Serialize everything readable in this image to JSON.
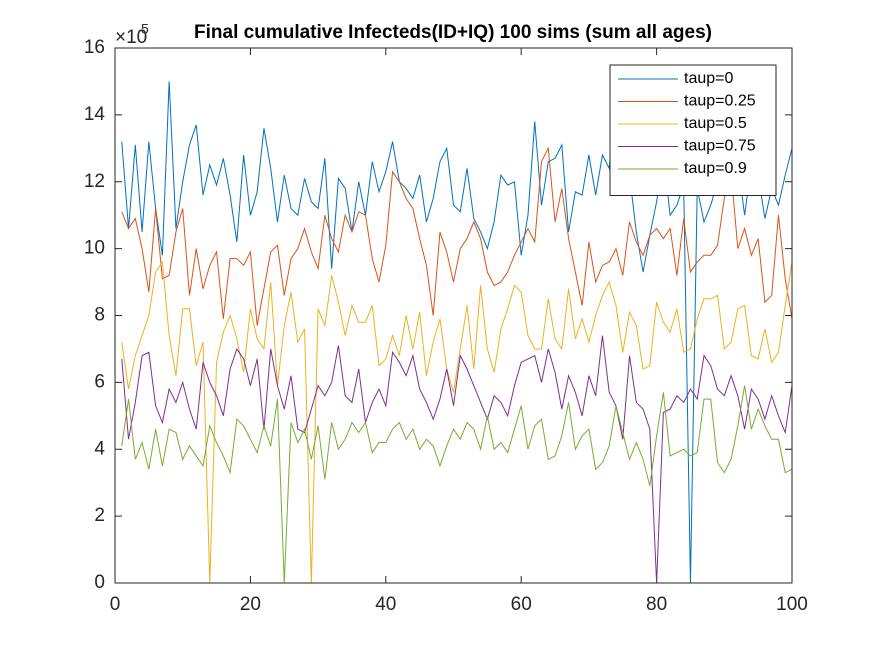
{
  "chart_data": {
    "type": "line",
    "title": "Final cumulative Infecteds(ID+IQ) 100 sims (sum all ages)",
    "y_multiplier": "×10",
    "y_exponent": "5",
    "xlim": [
      0,
      100
    ],
    "xticks": [
      0,
      20,
      40,
      60,
      80,
      100
    ],
    "ylim": [
      0,
      16
    ],
    "yticks": [
      0,
      2,
      4,
      6,
      8,
      10,
      12,
      14,
      16
    ],
    "legend": "upper-right",
    "x": [
      1,
      2,
      3,
      4,
      5,
      6,
      7,
      8,
      9,
      10,
      11,
      12,
      13,
      14,
      15,
      16,
      17,
      18,
      19,
      20,
      21,
      22,
      23,
      24,
      25,
      26,
      27,
      28,
      29,
      30,
      31,
      32,
      33,
      34,
      35,
      36,
      37,
      38,
      39,
      40,
      41,
      42,
      43,
      44,
      45,
      46,
      47,
      48,
      49,
      50,
      51,
      52,
      53,
      54,
      55,
      56,
      57,
      58,
      59,
      60,
      61,
      62,
      63,
      64,
      65,
      66,
      67,
      68,
      69,
      70,
      71,
      72,
      73,
      74,
      75,
      76,
      77,
      78,
      79,
      80,
      81,
      82,
      83,
      84,
      85,
      86,
      87,
      88,
      89,
      90,
      91,
      92,
      93,
      94,
      95,
      96,
      97,
      98,
      99,
      100
    ],
    "series": [
      {
        "name": "taup=0",
        "color": "#0072bd",
        "values": [
          13.2,
          10.6,
          13.1,
          10.5,
          13.2,
          11.2,
          9.8,
          15.0,
          10.6,
          12.0,
          13.1,
          13.7,
          11.6,
          12.5,
          11.9,
          12.7,
          11.6,
          10.2,
          12.8,
          11.0,
          11.7,
          13.6,
          12.4,
          10.8,
          12.2,
          11.2,
          11.0,
          12.1,
          11.4,
          11.2,
          12.7,
          9.4,
          12.1,
          11.8,
          10.5,
          12.0,
          11.0,
          12.6,
          11.7,
          12.3,
          13.2,
          12.0,
          11.8,
          11.5,
          12.2,
          10.8,
          11.5,
          12.6,
          13.0,
          11.3,
          11.1,
          12.4,
          10.9,
          10.5,
          10.0,
          10.8,
          12.2,
          11.9,
          12.0,
          9.8,
          11.0,
          13.8,
          11.3,
          12.6,
          12.7,
          13.1,
          10.5,
          11.7,
          11.6,
          12.8,
          11.6,
          12.8,
          12.4,
          14.6,
          11.8,
          12.2,
          10.5,
          9.3,
          10.4,
          11.4,
          12.8,
          11.0,
          11.3,
          11.9,
          0,
          11.8,
          10.8,
          11.3,
          12.0,
          12.6,
          12.4,
          12.6,
          11.0,
          12.5,
          12.2,
          10.9,
          11.8,
          11.3,
          12.2,
          13.0
        ]
      },
      {
        "name": "taup=0.25",
        "color": "#d95319",
        "values": [
          11.1,
          10.6,
          10.9,
          10.0,
          8.7,
          11.2,
          9.1,
          9.2,
          10.5,
          11.2,
          8.6,
          10.0,
          8.8,
          9.5,
          9.9,
          7.9,
          9.7,
          9.7,
          9.5,
          9.9,
          7.7,
          8.8,
          9.9,
          10.1,
          8.6,
          9.7,
          10.0,
          10.6,
          9.9,
          9.4,
          11.0,
          10.3,
          9.9,
          11.0,
          10.5,
          11.1,
          11.0,
          9.7,
          9.0,
          10.1,
          12.3,
          12.0,
          11.5,
          11.2,
          10.3,
          9.5,
          8.0,
          10.5,
          9.9,
          9.0,
          10.0,
          10.3,
          10.8,
          10.3,
          9.3,
          8.9,
          9.0,
          9.3,
          9.8,
          10.2,
          10.6,
          10.2,
          12.6,
          13.0,
          10.8,
          11.8,
          10.3,
          9.3,
          8.3,
          10.2,
          9.0,
          9.5,
          9.6,
          10.0,
          9.2,
          10.8,
          10.2,
          9.8,
          10.4,
          10.6,
          10.3,
          10.6,
          9.2,
          10.9,
          9.3,
          9.6,
          9.8,
          9.8,
          10.1,
          11.5,
          12.3,
          10.0,
          10.6,
          9.8,
          10.3,
          8.4,
          8.6,
          11.0,
          9.1,
          7.9
        ]
      },
      {
        "name": "taup=0.5",
        "color": "#edb120",
        "values": [
          7.2,
          5.8,
          6.8,
          7.4,
          8.0,
          9.3,
          9.6,
          7.4,
          6.2,
          8.2,
          8.2,
          6.5,
          7.2,
          0,
          6.6,
          7.5,
          8.0,
          7.3,
          6.3,
          8.2,
          7.3,
          7.0,
          9.0,
          5.9,
          7.7,
          8.7,
          7.2,
          7.6,
          0,
          8.2,
          7.7,
          9.2,
          8.4,
          7.4,
          8.3,
          7.8,
          7.8,
          8.3,
          6.5,
          6.7,
          7.4,
          6.8,
          8.0,
          7.0,
          8.1,
          6.2,
          7.2,
          7.9,
          6.4,
          5.7,
          7.0,
          8.3,
          6.4,
          8.9,
          7.0,
          6.3,
          7.6,
          8.2,
          8.9,
          8.7,
          7.4,
          7.0,
          7.0,
          8.5,
          7.3,
          7.0,
          8.8,
          7.3,
          7.9,
          7.2,
          8.0,
          8.6,
          9.0,
          8.3,
          6.9,
          8.1,
          7.7,
          6.4,
          6.5,
          8.4,
          7.8,
          7.5,
          8.2,
          6.9,
          7.0,
          7.9,
          8.5,
          8.5,
          8.6,
          7.0,
          7.2,
          8.2,
          8.3,
          6.8,
          6.7,
          7.6,
          6.6,
          6.9,
          8.3,
          9.6
        ]
      },
      {
        "name": "taup=0.75",
        "color": "#7e2f8e",
        "values": [
          6.7,
          4.3,
          5.4,
          6.8,
          6.9,
          5.3,
          4.8,
          5.8,
          5.4,
          6.0,
          5.2,
          4.6,
          6.6,
          6.0,
          5.6,
          5.0,
          6.4,
          7.0,
          6.7,
          5.9,
          6.7,
          4.6,
          7.0,
          5.9,
          5.2,
          6.2,
          4.6,
          4.5,
          5.2,
          5.9,
          5.6,
          6.0,
          7.1,
          5.6,
          5.4,
          6.4,
          4.8,
          5.4,
          5.8,
          5.3,
          6.9,
          6.6,
          6.2,
          6.8,
          5.8,
          5.4,
          4.9,
          5.5,
          6.4,
          5.3,
          6.8,
          6.4,
          5.9,
          5.4,
          4.9,
          5.6,
          5.4,
          5.0,
          5.9,
          6.6,
          6.7,
          6.8,
          6.0,
          7.0,
          6.3,
          5.2,
          6.2,
          5.7,
          5.0,
          6.2,
          5.6,
          7.4,
          5.7,
          5.3,
          4.3,
          6.8,
          5.4,
          5.2,
          4.6,
          0,
          5.1,
          5.2,
          5.6,
          5.4,
          5.8,
          5.5,
          6.8,
          6.5,
          5.8,
          5.6,
          6.2,
          5.6,
          4.6,
          5.8,
          5.5,
          4.9,
          5.6,
          5.0,
          4.5,
          5.9
        ]
      },
      {
        "name": "taup=0.9",
        "color": "#77ac30",
        "values": [
          4.1,
          5.5,
          3.7,
          4.2,
          3.4,
          4.6,
          3.5,
          4.6,
          4.5,
          3.7,
          4.1,
          3.8,
          3.5,
          4.7,
          4.2,
          3.8,
          3.3,
          4.9,
          4.7,
          4.3,
          3.9,
          4.7,
          4.1,
          5.5,
          0,
          4.8,
          4.2,
          4.6,
          3.7,
          4.7,
          3.1,
          4.8,
          4.0,
          4.3,
          4.8,
          4.5,
          4.8,
          3.9,
          4.2,
          4.2,
          4.6,
          4.8,
          4.3,
          4.6,
          4.0,
          4.3,
          4.1,
          3.5,
          4.1,
          4.6,
          4.3,
          4.8,
          4.6,
          4.0,
          5.0,
          4.0,
          4.2,
          3.9,
          4.6,
          5.3,
          4.0,
          4.7,
          4.9,
          3.7,
          3.8,
          4.4,
          5.4,
          4.0,
          4.4,
          4.6,
          3.4,
          3.6,
          4.1,
          5.3,
          4.5,
          3.7,
          4.2,
          3.7,
          2.9,
          4.4,
          5.7,
          3.8,
          3.9,
          4.0,
          3.8,
          3.9,
          5.5,
          5.5,
          3.6,
          3.3,
          3.7,
          4.7,
          5.9,
          4.6,
          5.2,
          4.7,
          4.3,
          4.3,
          3.3,
          3.4
        ]
      }
    ]
  }
}
